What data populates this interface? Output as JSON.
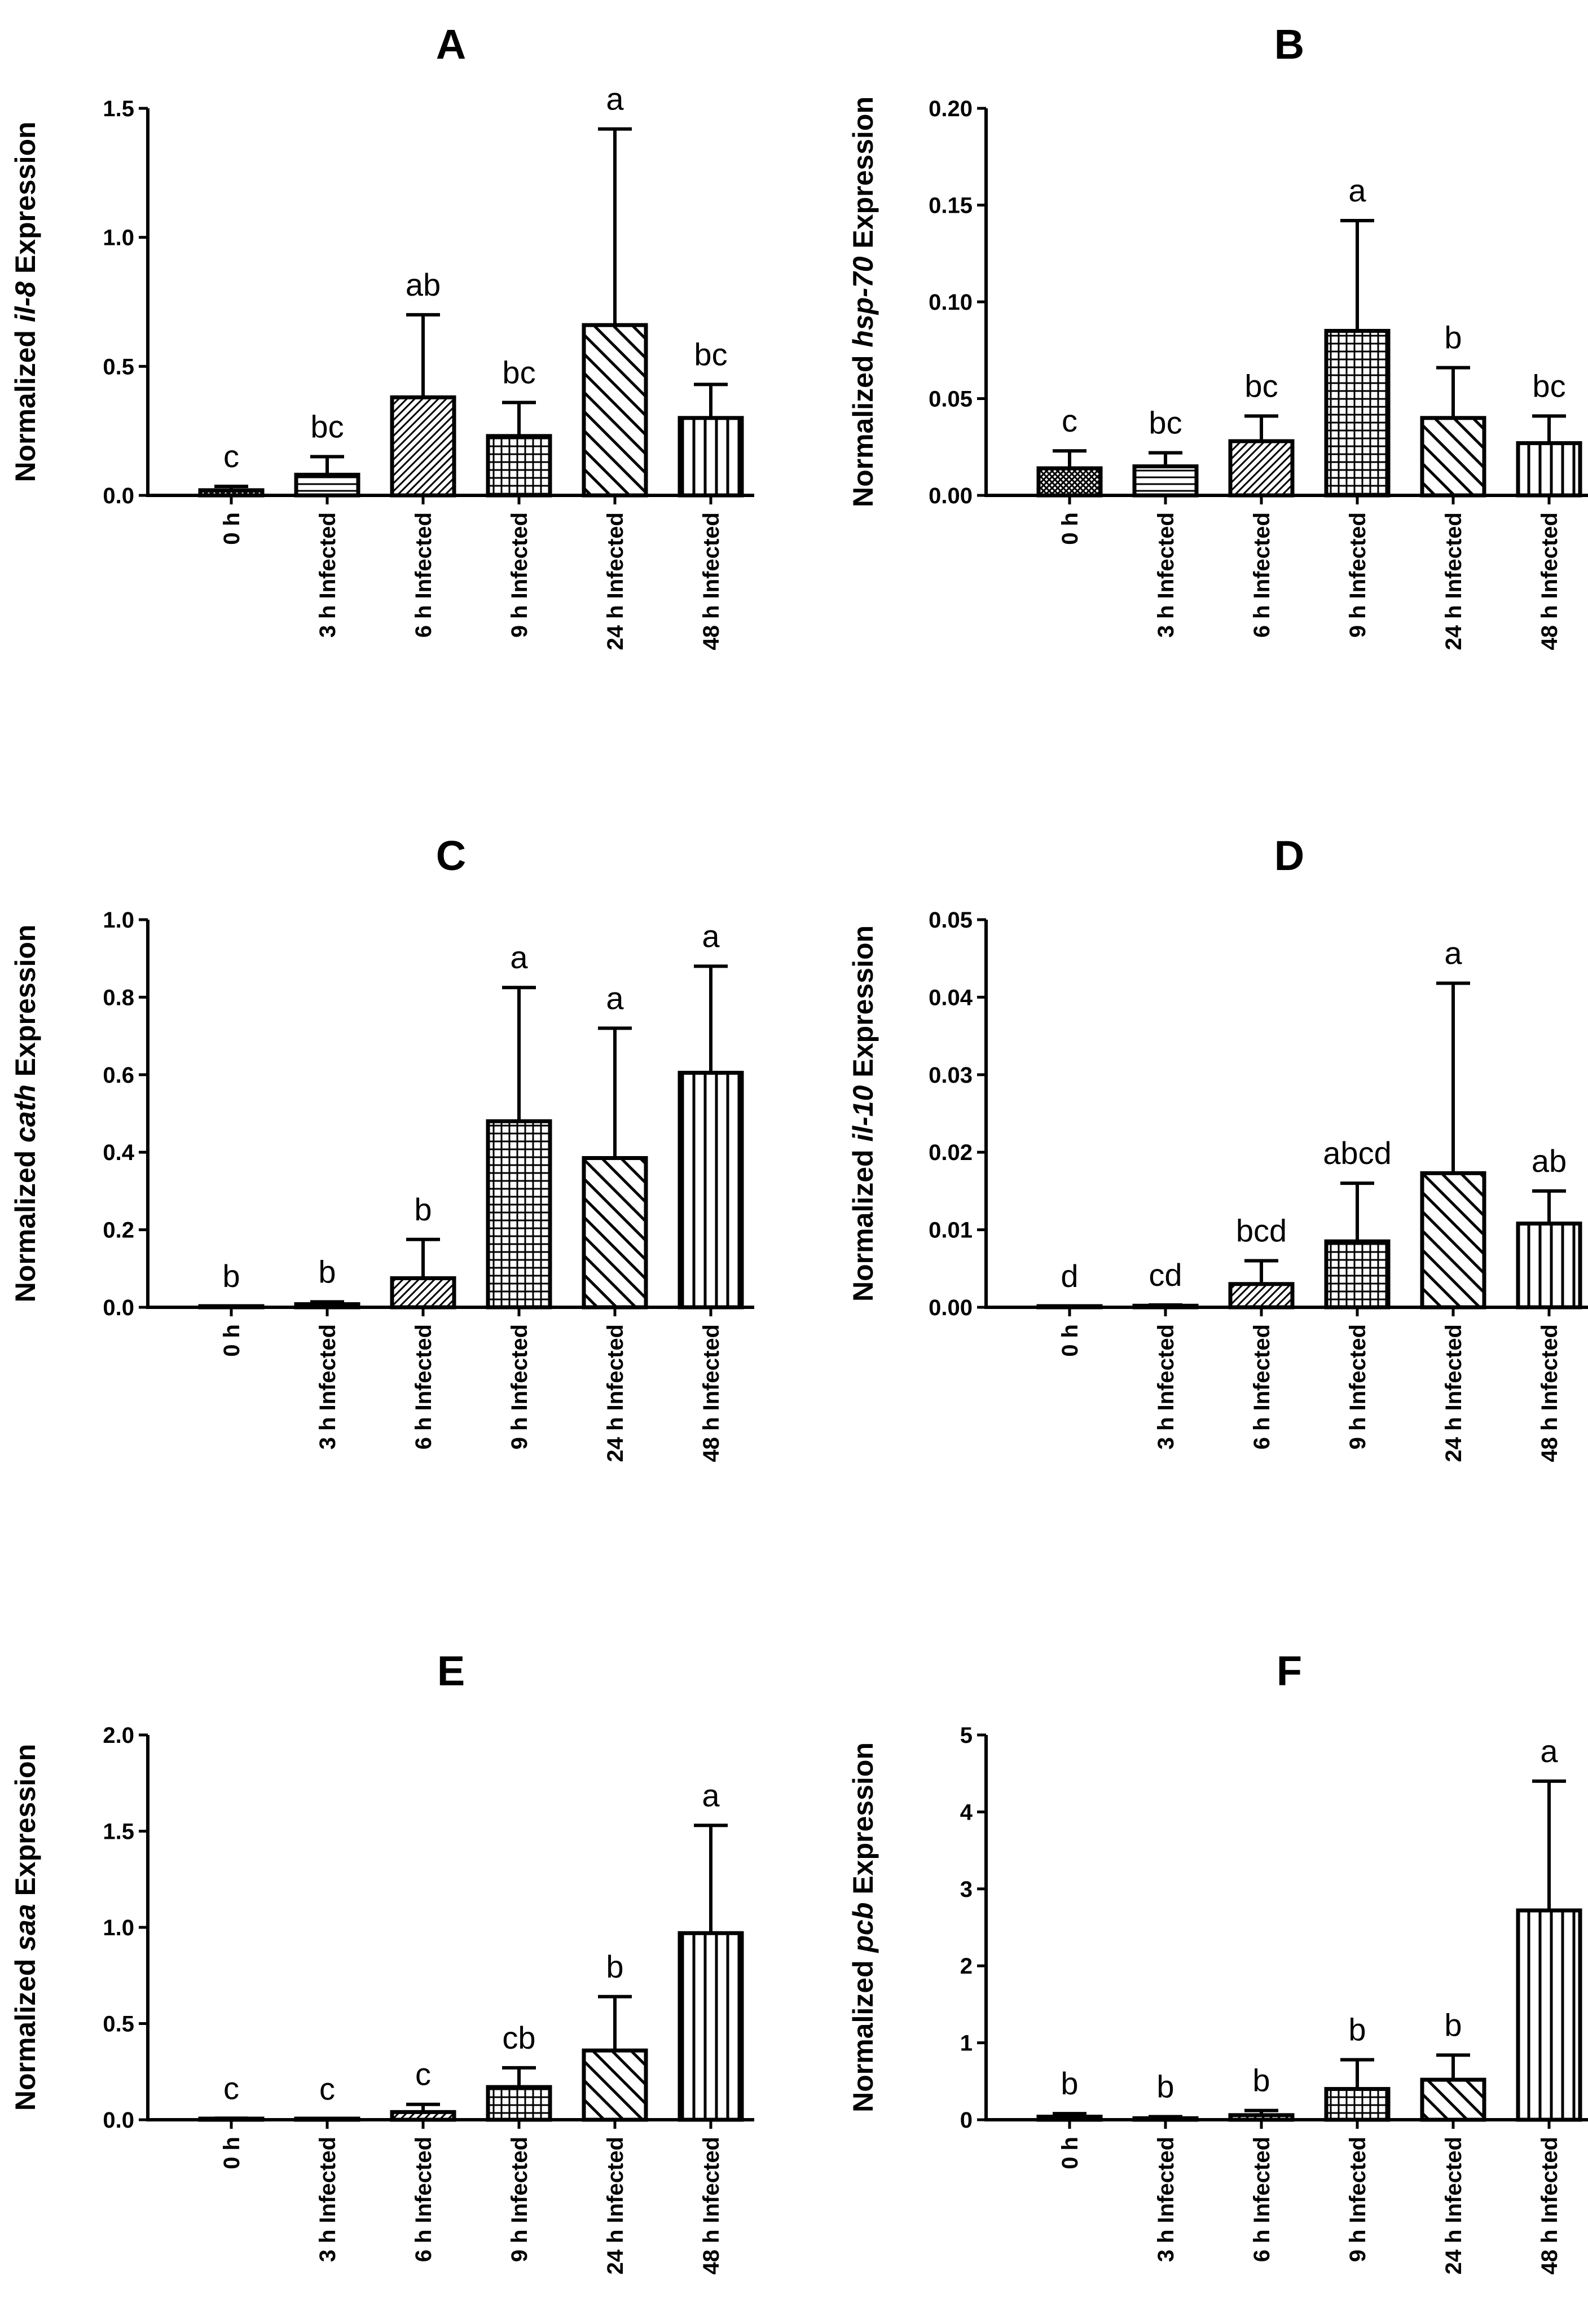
{
  "chart_data": [
    {
      "type": "bar",
      "panel": "A",
      "ylabel_prefix": "Normalized ",
      "gene": "il-8",
      "ylabel_suffix": " Expression",
      "categories": [
        "0 h",
        "3 h Infected",
        "6 h Infected",
        "9 h Infected",
        "24 h Infected",
        "48 h Infected"
      ],
      "values": [
        0.02,
        0.08,
        0.38,
        0.23,
        0.66,
        0.3
      ],
      "errors": [
        0.015,
        0.07,
        0.32,
        0.13,
        0.76,
        0.13
      ],
      "letters": [
        "c",
        "bc",
        "ab",
        "bc",
        "a",
        "bc"
      ],
      "patterns": [
        "cross",
        "hlines",
        "diag",
        "grid",
        "diagwide",
        "vlines"
      ],
      "ylim": [
        0,
        1.5
      ],
      "yticks": [
        0.0,
        0.5,
        1.0,
        1.5
      ],
      "ytick_labels": [
        "0.0",
        "0.5",
        "1.0",
        "1.5"
      ]
    },
    {
      "type": "bar",
      "panel": "B",
      "ylabel_prefix": "Normalized ",
      "gene": "hsp-70",
      "ylabel_suffix": " Expression",
      "categories": [
        "0 h",
        "3 h Infected",
        "6 h Infected",
        "9 h Infected",
        "24 h Infected",
        "48 h Infected"
      ],
      "values": [
        0.014,
        0.015,
        0.028,
        0.085,
        0.04,
        0.027
      ],
      "errors": [
        0.009,
        0.007,
        0.013,
        0.057,
        0.026,
        0.014
      ],
      "letters": [
        "c",
        "bc",
        "bc",
        "a",
        "b",
        "bc"
      ],
      "patterns": [
        "cross",
        "hlines",
        "diag",
        "grid",
        "diagwide",
        "vlines"
      ],
      "ylim": [
        0,
        0.2
      ],
      "yticks": [
        0.0,
        0.05,
        0.1,
        0.15,
        0.2
      ],
      "ytick_labels": [
        "0.00",
        "0.05",
        "0.10",
        "0.15",
        "0.20"
      ]
    },
    {
      "type": "bar",
      "panel": "C",
      "ylabel_prefix": "Normalized ",
      "gene": "cath",
      "ylabel_suffix": " Expression",
      "categories": [
        "0 h",
        "3 h Infected",
        "6 h Infected",
        "9 h Infected",
        "24 h Infected",
        "48 h Infected"
      ],
      "values": [
        0.002,
        0.008,
        0.075,
        0.48,
        0.385,
        0.605
      ],
      "errors": [
        0.001,
        0.006,
        0.1,
        0.345,
        0.335,
        0.275
      ],
      "letters": [
        "b",
        "b",
        "b",
        "a",
        "a",
        "a"
      ],
      "patterns": [
        "cross",
        "hlines",
        "diag",
        "grid",
        "diagwide",
        "vlines"
      ],
      "ylim": [
        0,
        1.0
      ],
      "yticks": [
        0.0,
        0.2,
        0.4,
        0.6,
        0.8,
        1.0
      ],
      "ytick_labels": [
        "0.0",
        "0.2",
        "0.4",
        "0.6",
        "0.8",
        "1.0"
      ]
    },
    {
      "type": "bar",
      "panel": "D",
      "ylabel_prefix": "Normalized ",
      "gene": "il-10",
      "ylabel_suffix": " Expression",
      "categories": [
        "0 h",
        "3 h Infected",
        "6 h Infected",
        "9 h Infected",
        "24 h Infected",
        "48 h Infected"
      ],
      "values": [
        0.0001,
        0.0002,
        0.003,
        0.0085,
        0.0173,
        0.0108
      ],
      "errors": [
        5e-05,
        0.0001,
        0.003,
        0.0075,
        0.0245,
        0.0042
      ],
      "letters": [
        "d",
        "cd",
        "bcd",
        "abcd",
        "a",
        "ab"
      ],
      "patterns": [
        "cross",
        "hlines",
        "diag",
        "grid",
        "diagwide",
        "vlines"
      ],
      "ylim": [
        0,
        0.05
      ],
      "yticks": [
        0.0,
        0.01,
        0.02,
        0.03,
        0.04,
        0.05
      ],
      "ytick_labels": [
        "0.00",
        "0.01",
        "0.02",
        "0.03",
        "0.04",
        "0.05"
      ]
    },
    {
      "type": "bar",
      "panel": "E",
      "ylabel_prefix": "Normalized ",
      "gene": "saa",
      "ylabel_suffix": " Expression",
      "categories": [
        "0 h",
        "3 h Infected",
        "6 h Infected",
        "9 h Infected",
        "24 h Infected",
        "48 h Infected"
      ],
      "values": [
        0.005,
        0.003,
        0.04,
        0.17,
        0.36,
        0.97
      ],
      "errors": [
        0.003,
        0.002,
        0.04,
        0.1,
        0.28,
        0.56
      ],
      "letters": [
        "c",
        "c",
        "c",
        "cb",
        "b",
        "a"
      ],
      "patterns": [
        "cross",
        "hlines",
        "diag",
        "grid",
        "diagwide",
        "vlines"
      ],
      "ylim": [
        0,
        2.0
      ],
      "yticks": [
        0.0,
        0.5,
        1.0,
        1.5,
        2.0
      ],
      "ytick_labels": [
        "0.0",
        "0.5",
        "1.0",
        "1.5",
        "2.0"
      ]
    },
    {
      "type": "bar",
      "panel": "F",
      "ylabel_prefix": "Normalized ",
      "gene": "pcb",
      "ylabel_suffix": " Expression",
      "categories": [
        "0 h",
        "3 h Infected",
        "6 h Infected",
        "9 h Infected",
        "24 h Infected",
        "48 h Infected"
      ],
      "values": [
        0.04,
        0.02,
        0.06,
        0.4,
        0.52,
        2.72
      ],
      "errors": [
        0.04,
        0.02,
        0.06,
        0.38,
        0.32,
        1.68
      ],
      "letters": [
        "b",
        "b",
        "b",
        "b",
        "b",
        "a"
      ],
      "patterns": [
        "cross",
        "hlines",
        "diag",
        "grid",
        "diagwide",
        "vlines"
      ],
      "ylim": [
        0,
        5
      ],
      "yticks": [
        0,
        1,
        2,
        3,
        4,
        5
      ],
      "ytick_labels": [
        "0",
        "1",
        "2",
        "3",
        "4",
        "5"
      ]
    }
  ]
}
